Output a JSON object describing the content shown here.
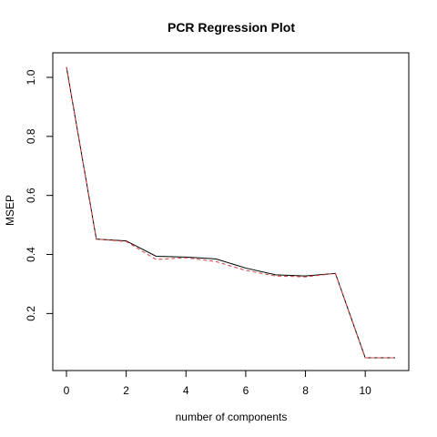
{
  "chart_data": {
    "type": "line",
    "title": "PCR Regression Plot",
    "xlabel": "number of components",
    "ylabel": "MSEP",
    "xlim": [
      0,
      11
    ],
    "ylim": [
      0.05,
      1.04
    ],
    "x_ticks": [
      0,
      2,
      4,
      6,
      8,
      10
    ],
    "y_ticks": [
      0.2,
      0.4,
      0.6,
      0.8,
      1.0
    ],
    "x_tick_labels": [
      "0",
      "2",
      "4",
      "6",
      "8",
      "10"
    ],
    "y_tick_labels": [
      "0.2",
      "0.4",
      "0.6",
      "0.8",
      "1.0"
    ],
    "grid": false,
    "x": [
      0,
      1,
      2,
      3,
      4,
      5,
      6,
      7,
      8,
      9,
      10,
      11
    ],
    "series": [
      {
        "values": [
          1.035,
          0.452,
          0.446,
          0.394,
          0.391,
          0.385,
          0.354,
          0.331,
          0.327,
          0.336,
          0.05,
          0.05
        ],
        "color": "#000000",
        "style": "solid"
      },
      {
        "values": [
          1.035,
          0.452,
          0.444,
          0.383,
          0.389,
          0.376,
          0.346,
          0.327,
          0.324,
          0.336,
          0.05,
          0.05
        ],
        "color": "#e04040",
        "style": "dashed"
      }
    ]
  }
}
